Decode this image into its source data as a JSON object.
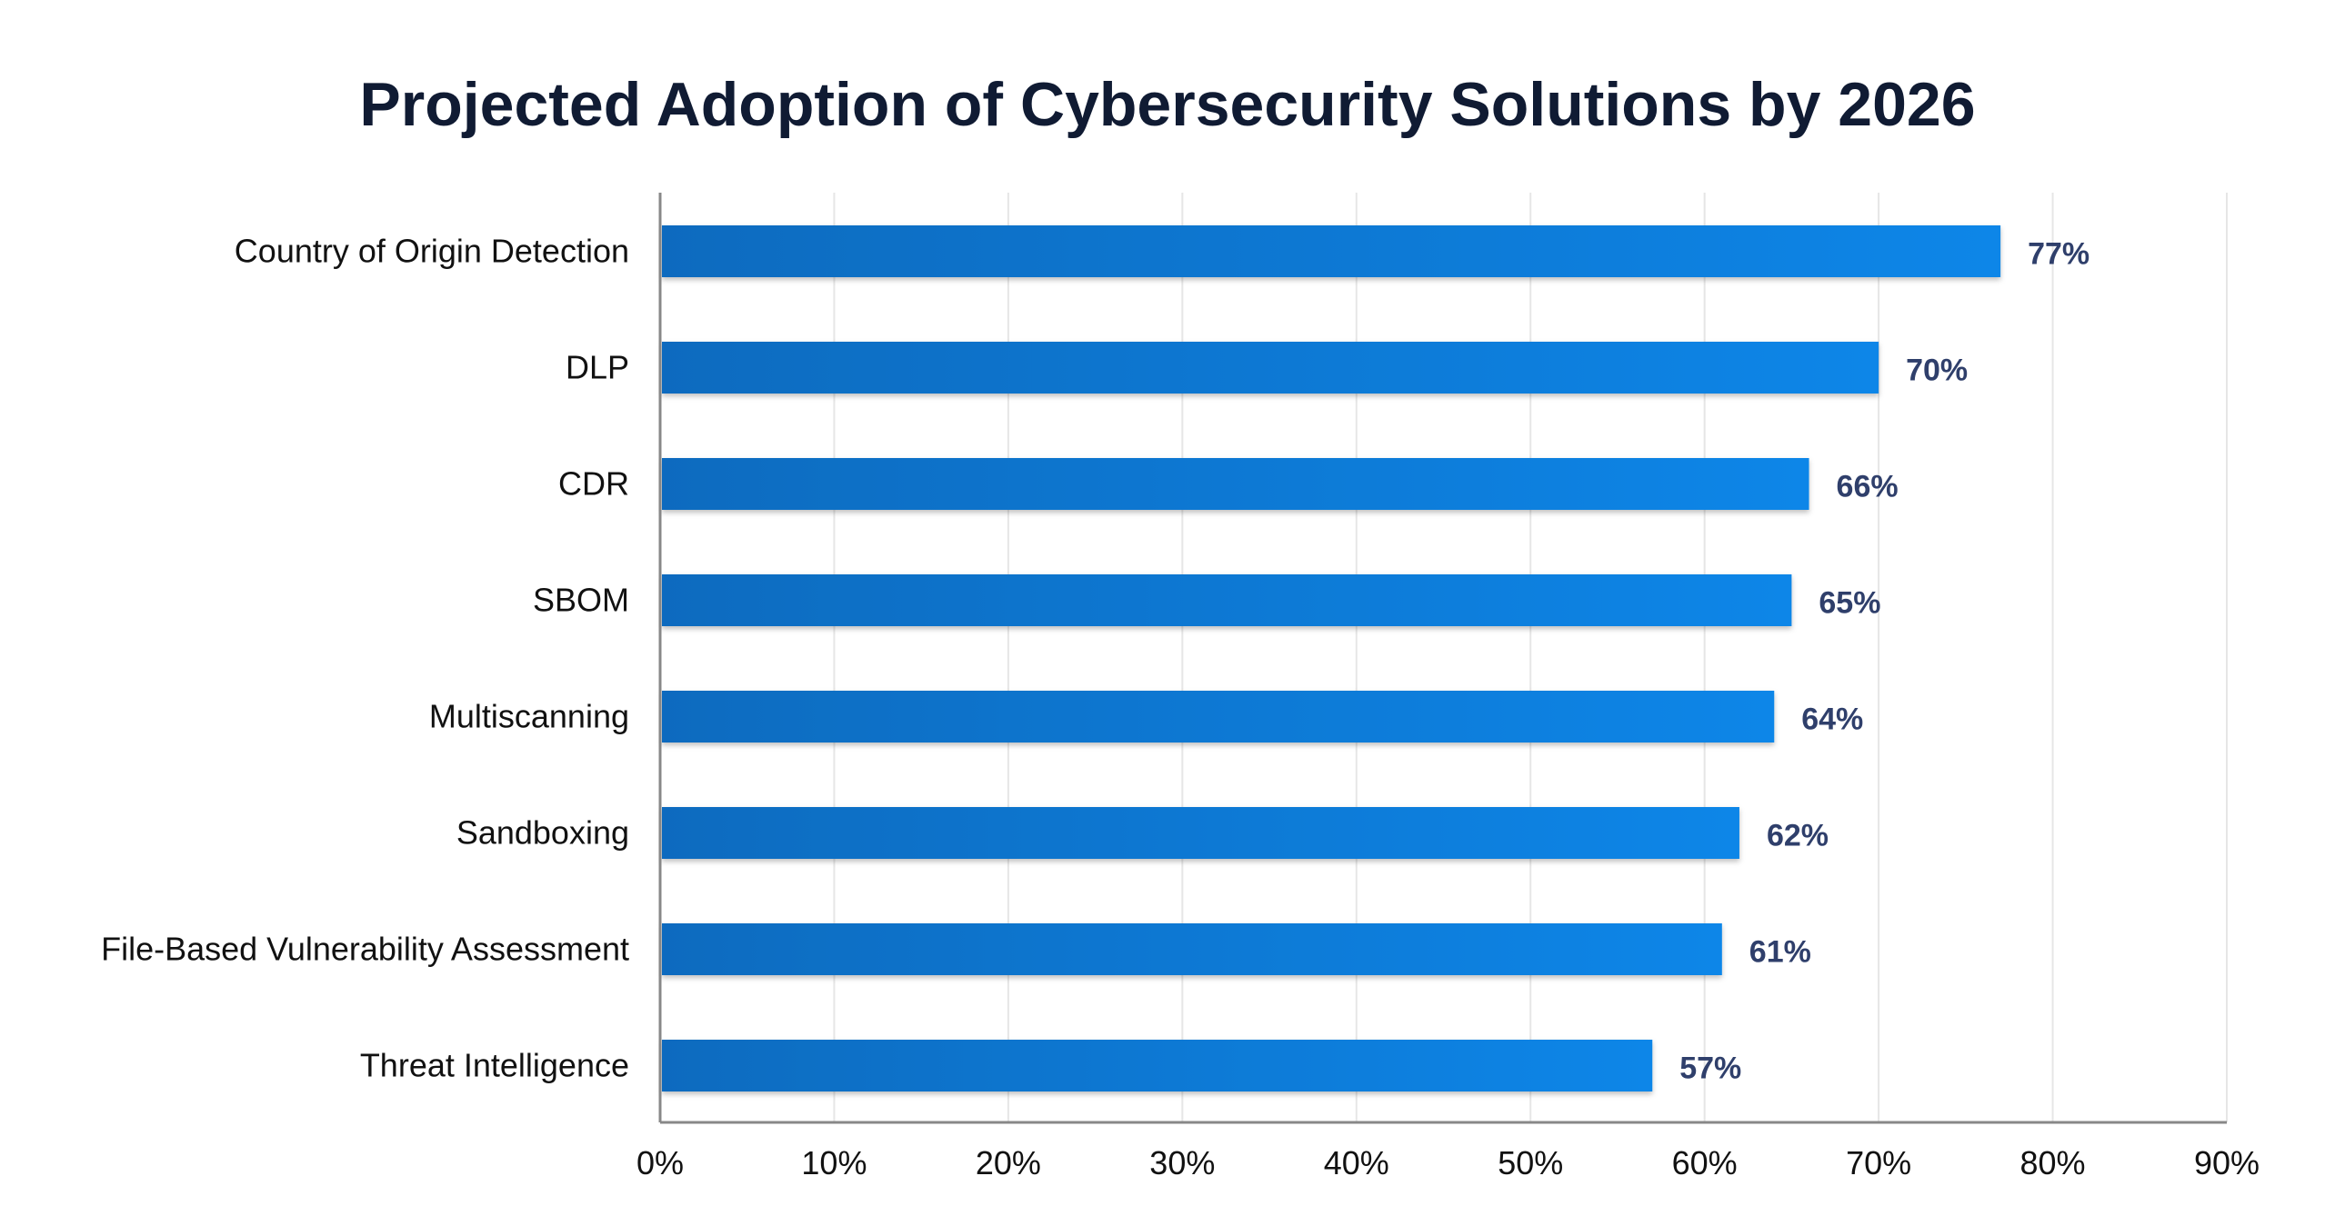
{
  "chart_data": {
    "type": "bar",
    "orientation": "horizontal",
    "title": "Projected Adoption of Cybersecurity Solutions by 2026",
    "categories": [
      "Country of Origin Detection",
      "DLP",
      "CDR",
      "SBOM",
      "Multiscanning",
      "Sandboxing",
      "File-Based Vulnerability Assessment",
      "Threat Intelligence"
    ],
    "values": [
      77,
      70,
      66,
      65,
      64,
      62,
      61,
      57
    ],
    "value_labels": [
      "77%",
      "70%",
      "66%",
      "65%",
      "64%",
      "62%",
      "61%",
      "57%"
    ],
    "xlim": [
      0,
      90
    ],
    "xticks": [
      0,
      10,
      20,
      30,
      40,
      50,
      60,
      70,
      80,
      90
    ],
    "xtick_labels": [
      "0%",
      "10%",
      "20%",
      "30%",
      "40%",
      "50%",
      "60%",
      "70%",
      "80%",
      "90%"
    ],
    "xlabel": "",
    "ylabel": "",
    "grid": "vertical",
    "colors": {
      "bar_start": "#0b6bbf",
      "bar_end": "#0a86e8",
      "value_label": "#2f3f6b",
      "title": "#101b33"
    }
  }
}
